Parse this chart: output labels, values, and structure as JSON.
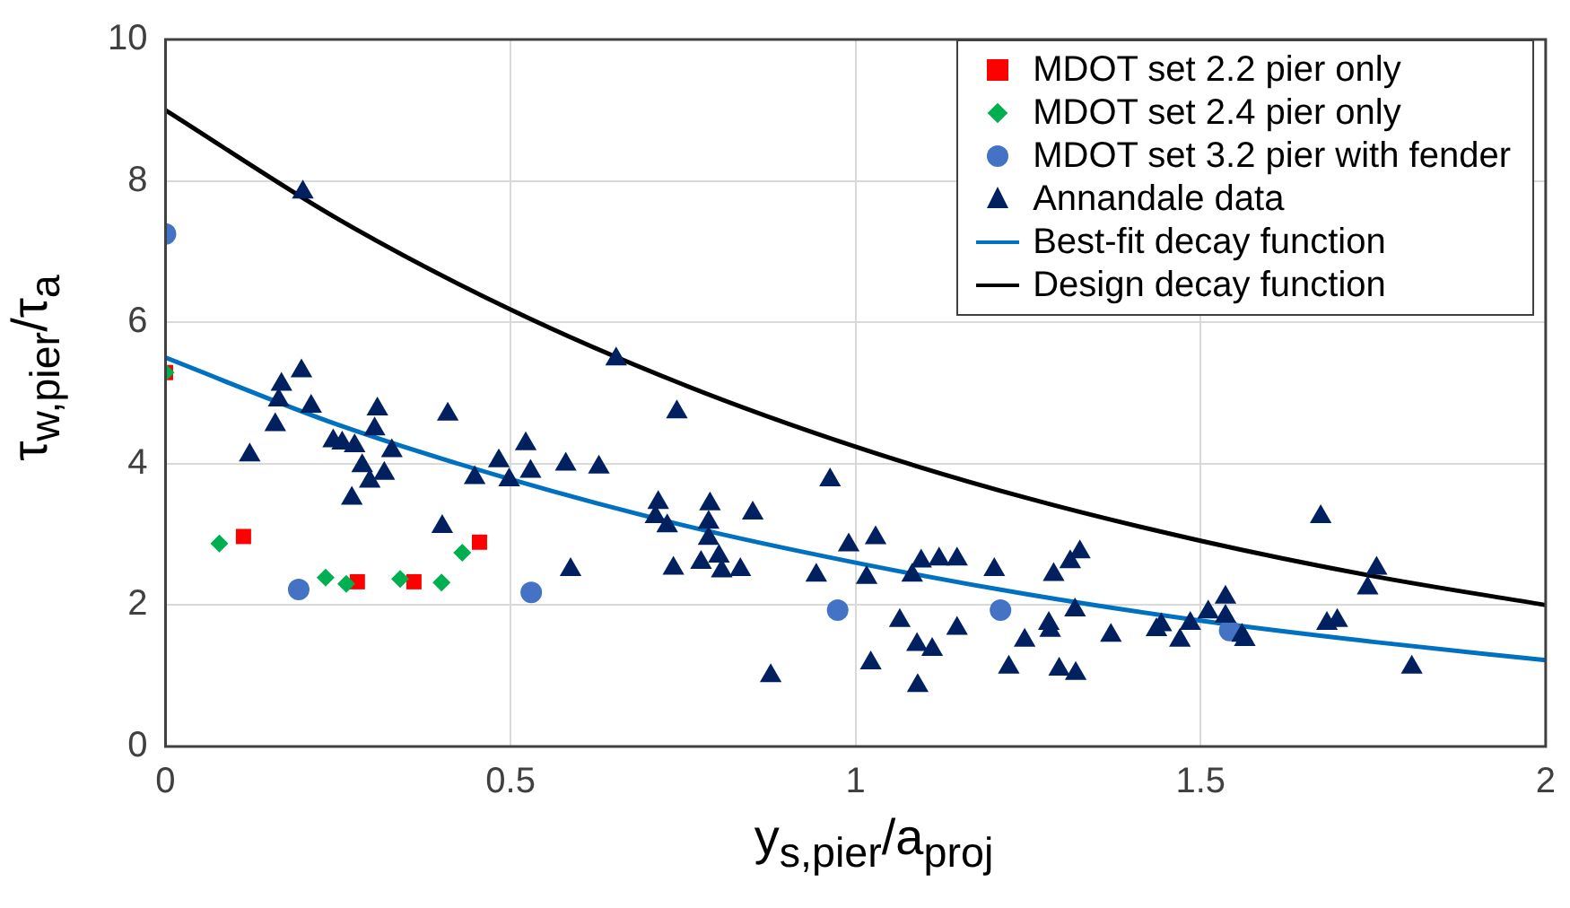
{
  "chart_data": {
    "type": "scatter",
    "xlabel": "y$_{s,pier}$/a$_{proj}$",
    "ylabel": "τ$_{w,pier}$/τ$_{a}$",
    "xlim": [
      0,
      2
    ],
    "xticks": [
      0,
      0.5,
      1,
      1.5,
      2
    ],
    "ylim": [
      0,
      10
    ],
    "yticks": [
      0,
      2,
      4,
      6,
      8,
      10
    ],
    "grid": true,
    "legend": "top right",
    "series": [
      {
        "name": "MDOT set 2.2 pier only",
        "type": "scatter",
        "marker": "square",
        "color": "#ff0000",
        "x": [
          0,
          0.113,
          0.278,
          0.36,
          0.455
        ],
        "values": [
          5.29,
          2.97,
          2.33,
          2.33,
          2.89
        ]
      },
      {
        "name": "MDOT set 2.4 pier only",
        "type": "scatter",
        "marker": "diamond",
        "color": "#00b050",
        "x": [
          0,
          0.078,
          0.232,
          0.262,
          0.34,
          0.4,
          0.43
        ],
        "values": [
          5.29,
          2.87,
          2.39,
          2.3,
          2.37,
          2.32,
          2.74
        ]
      },
      {
        "name": "MDOT set 3.2 pier with fender",
        "type": "scatter",
        "marker": "circle",
        "color": "#4472c4",
        "x": [
          0,
          0.193,
          0.53,
          0.974,
          1.21,
          1.542
        ],
        "values": [
          7.25,
          2.22,
          2.18,
          1.93,
          1.93,
          1.64
        ]
      },
      {
        "name": "Annandale data",
        "type": "scatter",
        "marker": "triangle",
        "color": "#002060",
        "x": [
          0.199,
          0.653,
          0.122,
          0.159,
          0.164,
          0.168,
          0.197,
          0.211,
          0.243,
          0.256,
          0.274,
          0.285,
          0.296,
          0.27,
          0.307,
          0.303,
          0.317,
          0.328,
          0.409,
          0.401,
          0.587,
          0.448,
          0.483,
          0.498,
          0.522,
          0.529,
          0.58,
          0.628,
          0.741,
          0.714,
          0.71,
          0.727,
          0.736,
          0.789,
          0.787,
          0.787,
          0.776,
          0.802,
          0.806,
          0.833,
          0.851,
          0.877,
          0.943,
          0.963,
          0.99,
          1.016,
          1.029,
          1.022,
          1.064,
          1.082,
          1.095,
          1.121,
          1.147,
          1.089,
          1.111,
          1.09,
          1.147,
          1.201,
          1.222,
          1.245,
          1.28,
          1.282,
          1.287,
          1.311,
          1.325,
          1.318,
          1.295,
          1.319,
          1.37,
          1.436,
          1.443,
          1.47,
          1.485,
          1.511,
          1.536,
          1.536,
          1.56,
          1.564,
          1.674,
          1.683,
          1.698,
          1.742,
          1.755,
          1.806
        ],
        "values": [
          7.84,
          5.48,
          4.12,
          4.55,
          4.9,
          5.12,
          5.31,
          4.81,
          4.32,
          4.29,
          4.25,
          3.97,
          3.75,
          3.51,
          4.77,
          4.49,
          3.86,
          4.18,
          4.7,
          3.11,
          2.5,
          3.8,
          4.04,
          3.77,
          4.28,
          3.89,
          3.99,
          3.95,
          4.73,
          3.45,
          3.25,
          3.12,
          2.52,
          3.43,
          3.17,
          2.94,
          2.6,
          2.69,
          2.48,
          2.5,
          3.3,
          1.0,
          2.42,
          3.77,
          2.85,
          2.39,
          2.95,
          1.18,
          1.78,
          2.42,
          2.62,
          2.65,
          2.65,
          1.44,
          1.37,
          0.86,
          1.67,
          2.5,
          1.12,
          1.5,
          1.74,
          1.64,
          2.43,
          2.61,
          2.75,
          1.93,
          1.09,
          1.03,
          1.57,
          1.65,
          1.72,
          1.5,
          1.74,
          1.9,
          2.11,
          1.84,
          1.57,
          1.51,
          3.25,
          1.74,
          1.78,
          2.24,
          2.52,
          1.12
        ]
      },
      {
        "name": "Best-fit decay function",
        "type": "line",
        "marker": "none",
        "line_style": "solid",
        "color": "#0070c0",
        "x": [
          0,
          0.25,
          0.5,
          0.75,
          1,
          1.25,
          1.5,
          1.75,
          2
        ],
        "values": [
          5.5,
          4.55,
          3.78,
          3.13,
          2.6,
          2.15,
          1.78,
          1.48,
          1.22
        ]
      },
      {
        "name": "Design decay function",
        "type": "line",
        "marker": "none",
        "line_style": "solid",
        "color": "#000000",
        "x": [
          0,
          0.25,
          0.5,
          0.75,
          1,
          1.25,
          1.5,
          1.75,
          2
        ],
        "values": [
          9,
          7.46,
          6.18,
          5.12,
          4.24,
          3.51,
          2.91,
          2.41,
          2.0
        ]
      }
    ]
  }
}
